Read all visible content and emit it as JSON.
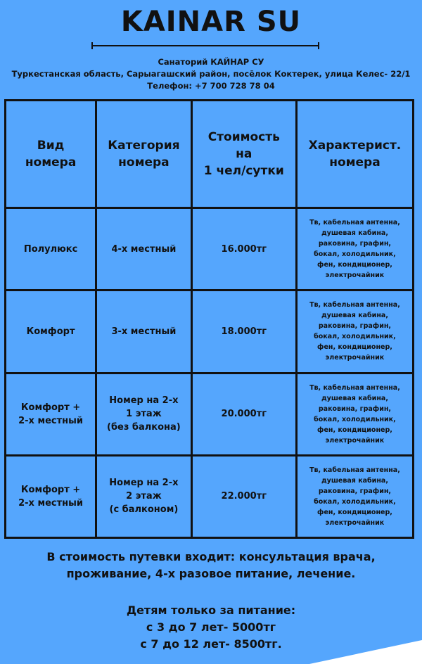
{
  "header": {
    "title": "KAINAR SU",
    "name": "Санаторий КАЙНАР СУ",
    "address": "Туркестанская область, Сарыагашский район, посёлок Коктерек, улица Келес- 22/1",
    "phone": "Телефон:  +7 700 728 78 04"
  },
  "table": {
    "headers": [
      "Вид номера",
      "Категория номера",
      "Стоимость на 1 чел/сутки",
      "Характерист. номера"
    ],
    "header_lines": [
      [
        "Вид",
        "номера"
      ],
      [
        "Категория",
        "номера"
      ],
      [
        "Стоимость",
        "на",
        "1 чел/сутки"
      ],
      [
        "Характерист.",
        "номера"
      ]
    ],
    "rows": [
      {
        "type": [
          "Полулюкс"
        ],
        "category": [
          "4-х местный"
        ],
        "price": "16.000тг",
        "features": [
          "Тв, кабельная антенна,",
          "душевая кабина,",
          "раковина, графин,",
          "бокал, холодильник,",
          "фен, кондиционер,",
          "электрочайник"
        ]
      },
      {
        "type": [
          "Комфорт"
        ],
        "category": [
          "3-х местный"
        ],
        "price": "18.000тг",
        "features": [
          "Тв, кабельная антенна,",
          "душевая кабина,",
          "раковина, графин,",
          "бокал, холодильник,",
          "фен, кондиционер,",
          "электрочайник"
        ]
      },
      {
        "type": [
          "Комфорт +",
          "2-х местный"
        ],
        "category": [
          "Номер на 2-х",
          "1 этаж",
          "(без балкона)"
        ],
        "price": "20.000тг",
        "features": [
          "Тв, кабельная антенна,",
          "душевая кабина,",
          "раковина, графин,",
          "бокал, холодильник,",
          "фен, кондиционер,",
          "электрочайник"
        ]
      },
      {
        "type": [
          "Комфорт +",
          "2-х местный"
        ],
        "category": [
          "Номер на 2-х",
          "2 этаж",
          "(с балконом)"
        ],
        "price": "22.000тг",
        "features": [
          "Тв, кабельная антенна,",
          "душевая кабина,",
          "раковина, графин,",
          "бокал, холодильник,",
          "фен, кондиционер,",
          "электрочайник"
        ]
      }
    ]
  },
  "footer": {
    "included": [
      "В стоимость путевки входит: консультация врача,",
      "проживание, 4-х разовое питание, лечение."
    ],
    "children": [
      "Детям только за питание:",
      "с 3 до 7 лет- 5000тг",
      "с 7 до 12 лет- 8500тг."
    ]
  },
  "colors": {
    "background": "#55a6fd",
    "text": "#111111",
    "wedge": "#ffffff"
  }
}
